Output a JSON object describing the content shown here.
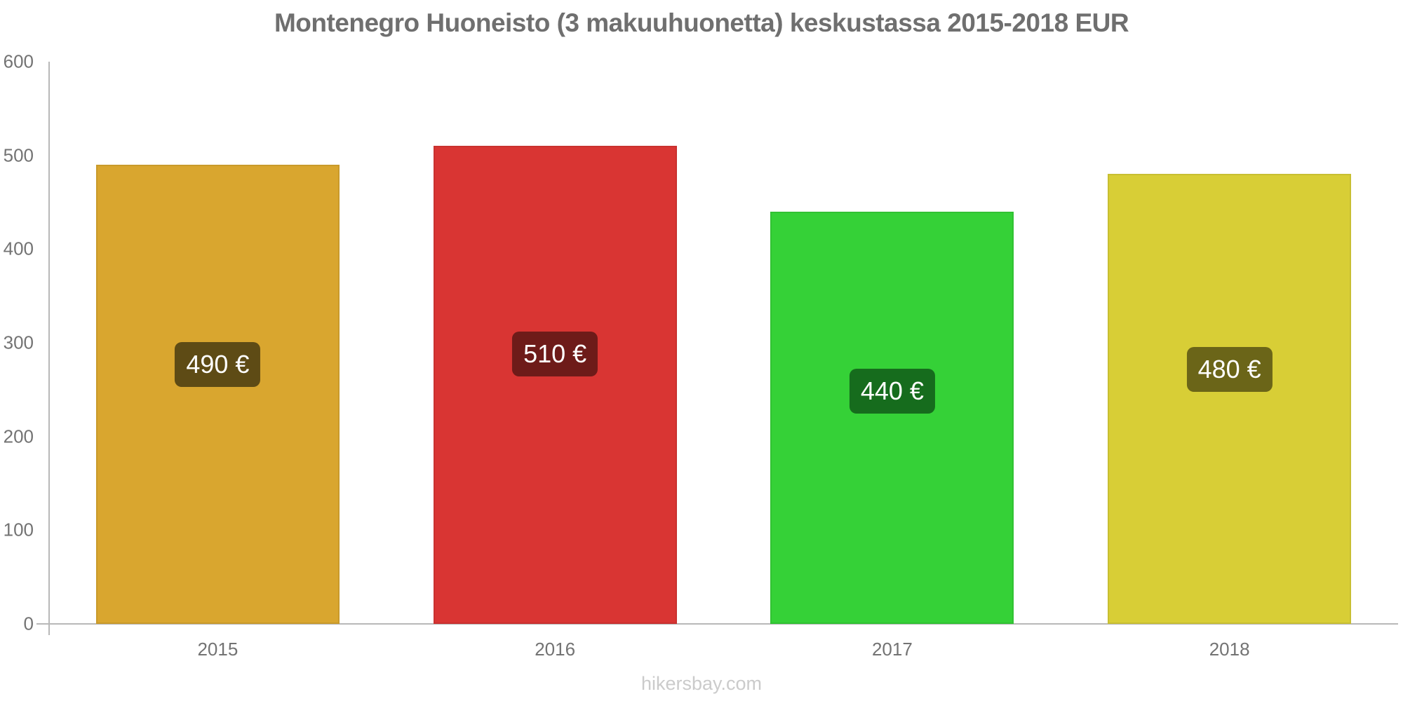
{
  "footer": {
    "text": "hikersbay.com",
    "color": "#cbcbcb"
  },
  "chart_data": {
    "type": "bar",
    "title": "Montenegro Huoneisto (3 makuuhuonetta) keskustassa 2015-2018 EUR",
    "title_color": "#6f6f6f",
    "categories": [
      "2015",
      "2016",
      "2017",
      "2018"
    ],
    "values": [
      490,
      510,
      440,
      480
    ],
    "value_labels": [
      "490 €",
      "510 €",
      "440 €",
      "480 €"
    ],
    "bar_colors": [
      "#d9a62f",
      "#d93533",
      "#35d137",
      "#d8ce36"
    ],
    "badge_colors": [
      "#5e4b15",
      "#6e1b19",
      "#166c1d",
      "#6b6518"
    ],
    "xlabel": "",
    "ylabel": "",
    "ylim": [
      0,
      600
    ],
    "yticks": [
      0,
      100,
      200,
      300,
      400,
      500,
      600
    ],
    "grid": false,
    "legend": "none",
    "axis_color": "#b8b8b8",
    "tick_label_color": "#737373",
    "currency": "EUR"
  }
}
